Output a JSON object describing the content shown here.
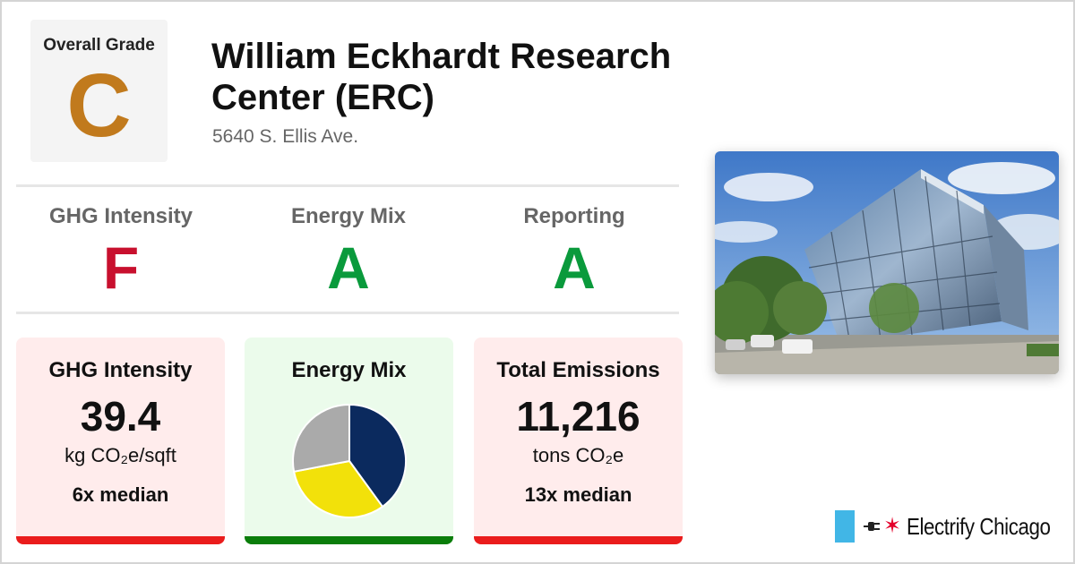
{
  "overall": {
    "label": "Overall Grade",
    "grade": "C",
    "color": "#c17a1d"
  },
  "building": {
    "name": "William Eckhardt Research Center (ERC)",
    "address": "5640 S. Ellis Ave."
  },
  "subgrades": [
    {
      "label": "GHG Intensity",
      "grade": "F",
      "color": "#c8102e"
    },
    {
      "label": "Energy Mix",
      "grade": "A",
      "color": "#0a9a3c"
    },
    {
      "label": "Reporting",
      "grade": "A",
      "color": "#0a9a3c"
    }
  ],
  "cards": {
    "ghg": {
      "title": "GHG Intensity",
      "value": "39.4",
      "unit": "kg CO₂e/sqft",
      "median": "6x median",
      "bg": "#ffecec",
      "bar": "#ea1c1c"
    },
    "mix": {
      "title": "Energy Mix",
      "bg": "#ebfbeb",
      "bar": "#0a7d0a"
    },
    "emissions": {
      "title": "Total Emissions",
      "value": "11,216",
      "unit": "tons CO₂e",
      "median": "13x median",
      "bg": "#ffecec",
      "bar": "#ea1c1c"
    }
  },
  "energy_mix": {
    "slices": [
      {
        "icon": "electricity-slice",
        "value": 0.4,
        "color": "#0b2a5e"
      },
      {
        "icon": "gas-slice",
        "value": 0.32,
        "color": "#f2e10a"
      },
      {
        "icon": "other-slice",
        "value": 0.28,
        "color": "#aaaaaa"
      }
    ]
  },
  "brand": {
    "name": "Electrify Chicago",
    "flag_color": "#41b6e6",
    "star_color": "#e4002b"
  }
}
